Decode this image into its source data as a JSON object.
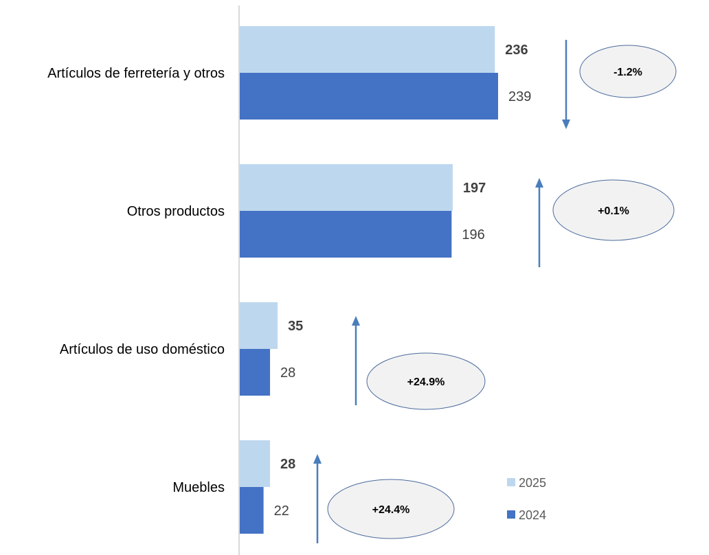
{
  "chart_data": {
    "type": "bar",
    "orientation": "horizontal",
    "title": "",
    "xlabel": "",
    "ylabel": "",
    "categories": [
      "Artículos de ferretería y otros",
      "Otros productos",
      "Artículos de uso doméstico",
      "Muebles"
    ],
    "series": [
      {
        "name": "2025",
        "values": [
          236,
          197,
          35,
          28
        ],
        "color": "#bdd7ee",
        "label_bold": true
      },
      {
        "name": "2024",
        "values": [
          239,
          196,
          28,
          22
        ],
        "color": "#4472c4",
        "label_bold": false
      }
    ],
    "changes": [
      {
        "label": "-1.2%",
        "direction": "down"
      },
      {
        "label": "+0.1%",
        "direction": "up"
      },
      {
        "label": "+24.9%",
        "direction": "up"
      },
      {
        "label": "+24.4%",
        "direction": "up"
      }
    ],
    "xlim": [
      0,
      280
    ],
    "grid": false,
    "legend_position": "bottom-right",
    "colors": {
      "arrow": "#4a7ebb",
      "ellipse_fill": "#f2f2f2",
      "ellipse_stroke": "#4a6a9c",
      "axis": "#d9d9d9"
    }
  }
}
